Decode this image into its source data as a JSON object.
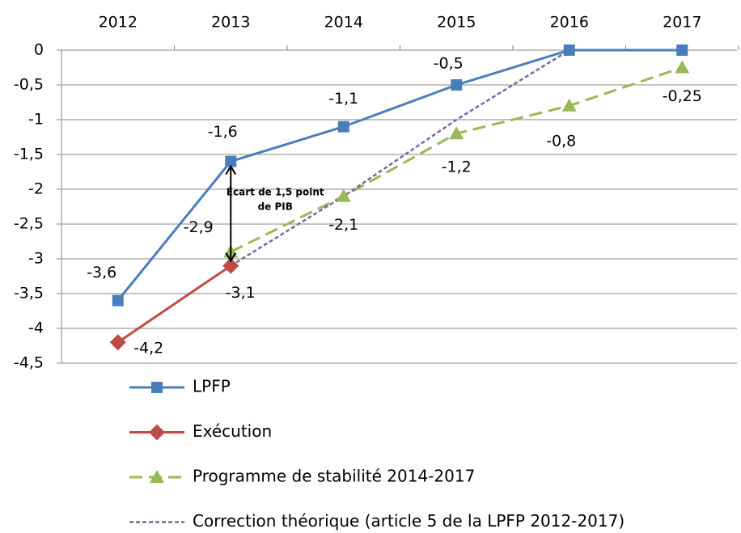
{
  "chart_data": {
    "type": "line",
    "categories": [
      "2012",
      "2013",
      "2014",
      "2015",
      "2016",
      "2017"
    ],
    "series": [
      {
        "name": "LPFP",
        "color": "#4a7ebb",
        "style": "solid",
        "marker": "square",
        "values": [
          -3.6,
          -1.6,
          -1.1,
          -0.5,
          0,
          0
        ],
        "value_labels": [
          "-3,6",
          "-1,6",
          "-1,1",
          "-0,5",
          null,
          null
        ]
      },
      {
        "name": "Exécution",
        "color": "#be4b48",
        "style": "solid",
        "marker": "diamond",
        "values": [
          -4.2,
          -3.1,
          null,
          null,
          null,
          null
        ],
        "value_labels": [
          "-4,2",
          "-3,1",
          null,
          null,
          null,
          null
        ]
      },
      {
        "name": "Programme de stabilité 2014-2017",
        "color": "#98b954",
        "style": "dashed",
        "marker": "triangle",
        "values": [
          null,
          -2.9,
          -2.1,
          -1.2,
          -0.8,
          -0.25
        ],
        "value_labels": [
          null,
          "-2,9",
          "-2,1",
          "-1,2",
          "-0,8",
          "-0,25"
        ]
      },
      {
        "name": "Correction théorique (article 5 de la LPFP 2012-2017)",
        "color": "#8064a2",
        "style": "dotted",
        "marker": "none",
        "values": [
          null,
          -3.1,
          -2.1,
          -1.0,
          0,
          null
        ]
      }
    ],
    "ylim": [
      -4.5,
      0
    ],
    "yticks": [
      0,
      {
        "value": -0.5,
        "label": "-0,5"
      },
      -1,
      {
        "value": -1.5,
        "label": "-1,5"
      },
      -2,
      {
        "value": -2.5,
        "label": "-2,5"
      },
      -3,
      {
        "value": -3.5,
        "label": "-3,5"
      },
      -4,
      {
        "value": -4.5,
        "label": "-4,5"
      }
    ],
    "grid": true,
    "annotation": [
      "Écart de 1,5 point",
      "de PIB"
    ],
    "legend": "bottom"
  }
}
